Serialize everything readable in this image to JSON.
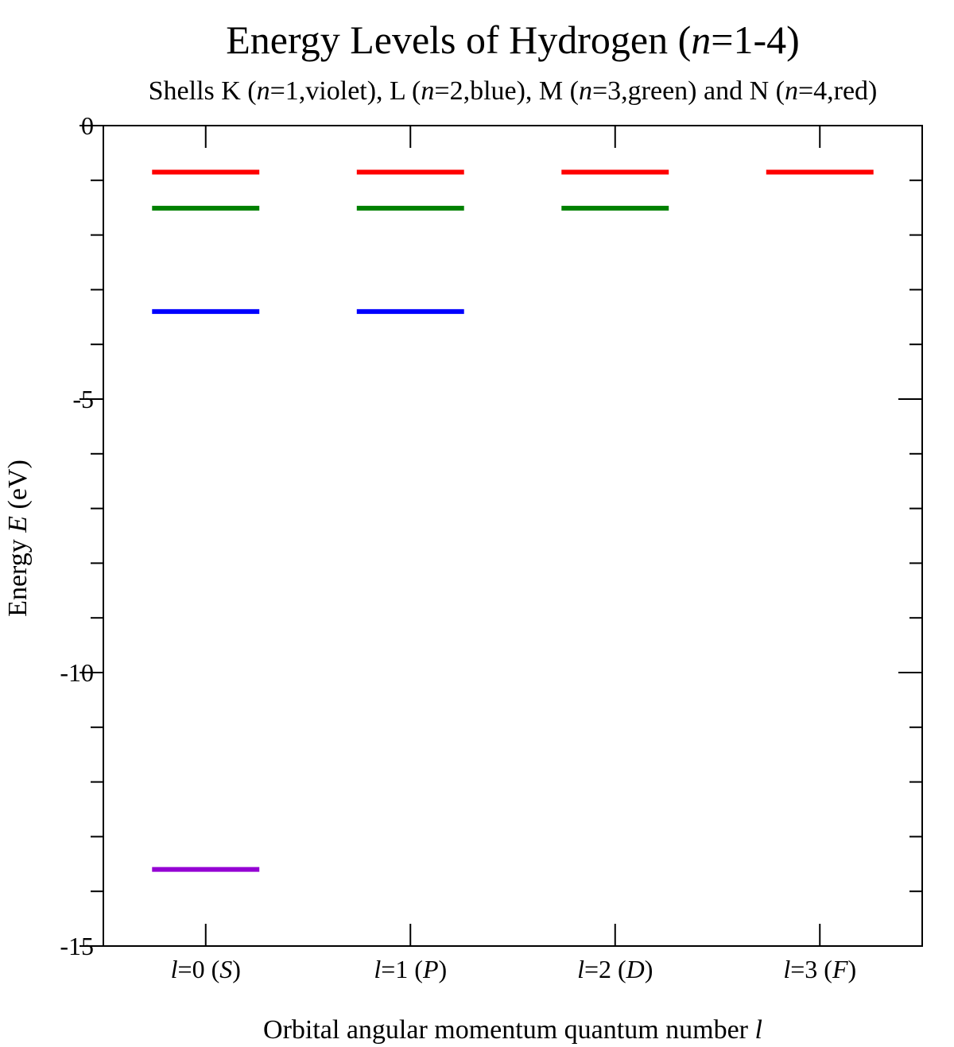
{
  "chart_data": {
    "type": "energy-level",
    "title": {
      "pre": "Energy Levels of Hydrogen (",
      "var": "n",
      "post": "=1-4)"
    },
    "subtitle": [
      {
        "t": "Shells K ("
      },
      {
        "t": "n",
        "i": true
      },
      {
        "t": "=1,violet), L ("
      },
      {
        "t": "n",
        "i": true
      },
      {
        "t": "=2,blue), M ("
      },
      {
        "t": "n",
        "i": true
      },
      {
        "t": "=3,green) and N ("
      },
      {
        "t": "n",
        "i": true
      },
      {
        "t": "=4,red)"
      }
    ],
    "ylabel": {
      "pre": "Energy ",
      "var": "E",
      "post": " (eV)"
    },
    "xlabel": {
      "pre": "Orbital angular momentum quantum number ",
      "var": "l"
    },
    "ylim": [
      -15,
      0
    ],
    "yticks": [
      0,
      -5,
      -10,
      -15
    ],
    "ytick_labels": [
      "0",
      "-5",
      "-10",
      "-15"
    ],
    "yminor_step": 1,
    "categories": [
      {
        "l": 0,
        "sym": "S"
      },
      {
        "l": 1,
        "sym": "P"
      },
      {
        "l": 2,
        "sym": "D"
      },
      {
        "l": 3,
        "sym": "F"
      }
    ],
    "series": [
      {
        "n": 1,
        "color": "#9400d3",
        "energy": -13.6,
        "l_values": [
          0
        ]
      },
      {
        "n": 2,
        "color": "#0000ff",
        "energy": -3.4,
        "l_values": [
          0,
          1
        ]
      },
      {
        "n": 3,
        "color": "#008000",
        "energy": -1.51,
        "l_values": [
          0,
          1,
          2
        ]
      },
      {
        "n": 4,
        "color": "#ff0000",
        "energy": -0.85,
        "l_values": [
          0,
          1,
          2,
          3
        ]
      }
    ],
    "grid": false,
    "legend": "none"
  }
}
